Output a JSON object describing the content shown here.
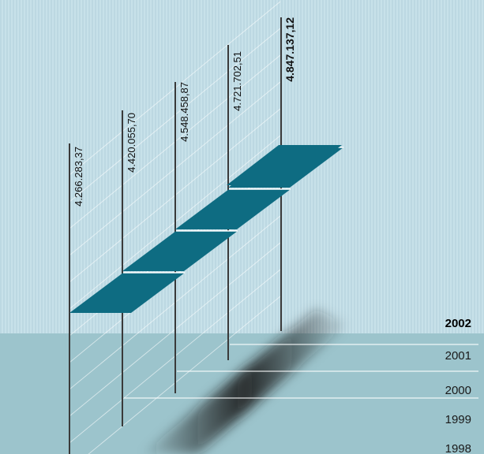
{
  "chart_data": {
    "type": "bar",
    "categories": [
      "1998",
      "1999",
      "2000",
      "2001",
      "2002"
    ],
    "values": [
      4266283.37,
      4420055.7,
      4548458.87,
      4721702.51,
      4847137.12
    ],
    "value_labels": [
      "4.266.283,37",
      "4.420.055,70",
      "4.548.458,87",
      "4.721.702,51",
      "4.847.137,12"
    ],
    "highlight": "2002",
    "colors": {
      "step": "#0e6c82",
      "background_top": "#c7e1e9",
      "background_bottom": "#9cc4cc",
      "stripes": "#b3d2dc",
      "shadow": "#202020"
    }
  }
}
